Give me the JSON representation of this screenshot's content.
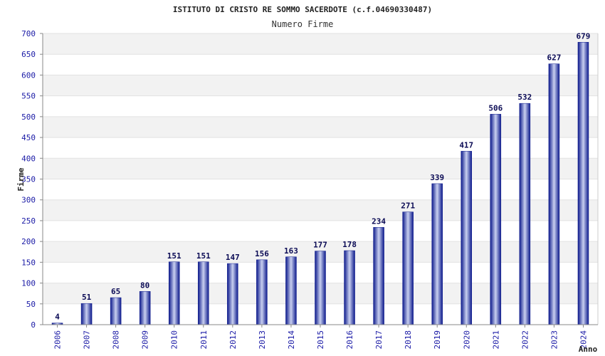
{
  "chart_data": {
    "type": "bar",
    "title": "ISTITUTO DI CRISTO RE SOMMO SACERDOTE (c.f.04690330487)",
    "subtitle": "Numero Firme",
    "xlabel": "Anno",
    "ylabel": "Firme",
    "categories": [
      "2006",
      "2007",
      "2008",
      "2009",
      "2010",
      "2011",
      "2012",
      "2013",
      "2014",
      "2015",
      "2016",
      "2017",
      "2018",
      "2019",
      "2020",
      "2021",
      "2022",
      "2023",
      "2024"
    ],
    "values": [
      4,
      51,
      65,
      80,
      151,
      151,
      147,
      156,
      163,
      177,
      178,
      234,
      271,
      339,
      417,
      506,
      532,
      627,
      679
    ],
    "ylim": [
      0,
      700
    ],
    "yticks": [
      0,
      50,
      100,
      150,
      200,
      250,
      300,
      350,
      400,
      450,
      500,
      550,
      600,
      650,
      700
    ],
    "grid": true,
    "colors": {
      "bar_dark": "#0d1a8c",
      "bar_light": "#c9d0f0",
      "band": "#f2f2f2"
    }
  }
}
